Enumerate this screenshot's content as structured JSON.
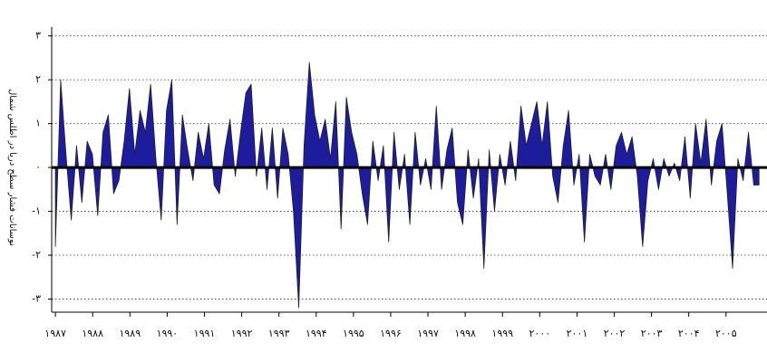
{
  "chart_data": {
    "type": "area",
    "y_label": "نوسانات فشار سطح دریا در اطلس شمال",
    "x": [
      1987,
      1987.142,
      1987.284,
      1987.426,
      1987.568,
      1987.71,
      1987.852,
      1987.994,
      1988.136,
      1988.278,
      1988.42,
      1988.562,
      1988.704,
      1988.846,
      1988.988,
      1989.13,
      1989.272,
      1989.414,
      1989.556,
      1989.698,
      1989.84,
      1989.982,
      1990.124,
      1990.266,
      1990.408,
      1990.55,
      1990.692,
      1990.834,
      1990.976,
      1991.118,
      1991.26,
      1991.402,
      1991.544,
      1991.686,
      1991.828,
      1991.97,
      1992.112,
      1992.254,
      1992.396,
      1992.538,
      1992.68,
      1992.822,
      1992.964,
      1993.106,
      1993.248,
      1993.39,
      1993.532,
      1993.674,
      1993.816,
      1993.958,
      1994.1,
      1994.242,
      1994.384,
      1994.526,
      1994.668,
      1994.81,
      1994.952,
      1995.094,
      1995.236,
      1995.378,
      1995.52,
      1995.662,
      1995.804,
      1995.946,
      1996.088,
      1996.23,
      1996.372,
      1996.514,
      1996.656,
      1996.798,
      1996.94,
      1997.082,
      1997.224,
      1997.366,
      1997.508,
      1997.65,
      1997.792,
      1997.934,
      1998.076,
      1998.218,
      1998.36,
      1998.502,
      1998.644,
      1998.786,
      1998.928,
      1999.07,
      1999.212,
      1999.354,
      1999.496,
      1999.638,
      1999.78,
      1999.922,
      2000.064,
      2000.206,
      2000.348,
      2000.49,
      2000.632,
      2000.774,
      2000.916,
      2001.058,
      2001.2,
      2001.342,
      2001.484,
      2001.626,
      2001.768,
      2001.91,
      2002.052,
      2002.194,
      2002.336,
      2002.478,
      2002.62,
      2002.762,
      2002.904,
      2003.046,
      2003.188,
      2003.33,
      2003.472,
      2003.614,
      2003.756,
      2003.898,
      2004.04,
      2004.182,
      2004.324,
      2004.466,
      2004.608,
      2004.75,
      2004.892,
      2005.034,
      2005.176,
      2005.318,
      2005.46,
      2005.602,
      2005.744,
      2005.886
    ],
    "series": [
      {
        "color": "#1c1c9c",
        "values": [
          -1.8,
          2.0,
          0.3,
          -1.2,
          0.5,
          -0.8,
          0.6,
          0.3,
          -1.1,
          0.8,
          1.2,
          -0.6,
          -0.3,
          0.6,
          1.8,
          0.3,
          1.3,
          0.8,
          1.9,
          0.2,
          -1.2,
          1.3,
          2.0,
          -1.3,
          1.2,
          0.4,
          -0.3,
          0.8,
          0.2,
          1.0,
          -0.4,
          -0.6,
          0.4,
          1.1,
          -0.2,
          0.8,
          1.7,
          1.9,
          -0.2,
          0.9,
          -0.5,
          0.9,
          -0.7,
          0.9,
          0.3,
          -1.0,
          -3.2,
          0.5,
          2.4,
          1.2,
          0.6,
          1.1,
          0.2,
          1.5,
          -1.4,
          1.6,
          0.8,
          0.3,
          -0.6,
          -1.3,
          0.6,
          -0.3,
          0.5,
          -1.7,
          0.8,
          -0.5,
          0.3,
          -1.3,
          0.8,
          -0.4,
          0.2,
          -0.5,
          1.4,
          -0.5,
          0.4,
          0.9,
          -0.8,
          -1.3,
          0.4,
          -0.7,
          0.2,
          -2.3,
          0.4,
          -1.0,
          0.3,
          -0.4,
          0.6,
          -0.3,
          1.4,
          0.5,
          1.0,
          1.5,
          0.5,
          1.5,
          -0.2,
          -0.8,
          0.5,
          1.3,
          -0.4,
          0.3,
          -1.7,
          0.3,
          -0.2,
          -0.4,
          0.3,
          -0.5,
          0.5,
          0.8,
          0.3,
          0.7,
          -0.2,
          -1.8,
          -0.3,
          0.2,
          -0.5,
          0.2,
          -0.2,
          0.1,
          -0.3,
          0.7,
          -0.7,
          1.0,
          0.1,
          1.1,
          -0.4,
          0.6,
          1.0,
          -0.6,
          -2.3,
          0.2,
          -0.3,
          0.8,
          -0.4,
          -0.4
        ]
      }
    ],
    "xlim": [
      1986.9,
      2006.1
    ],
    "ylim": [
      -3.3,
      3.2
    ],
    "xticks": [
      {
        "value": 1987,
        "label": "۱۹۸۷"
      },
      {
        "value": 1988,
        "label": "۱۹۸۸"
      },
      {
        "value": 1989,
        "label": "۱۹۸۹"
      },
      {
        "value": 1990,
        "label": "۱۹۹۰"
      },
      {
        "value": 1991,
        "label": "۱۹۹۱"
      },
      {
        "value": 1992,
        "label": "۱۹۹۲"
      },
      {
        "value": 1993,
        "label": "۱۹۹۳"
      },
      {
        "value": 1994,
        "label": "۱۹۹۴"
      },
      {
        "value": 1995,
        "label": "۱۹۹۵"
      },
      {
        "value": 1996,
        "label": "۱۹۹۶"
      },
      {
        "value": 1997,
        "label": "۱۹۹۷"
      },
      {
        "value": 1998,
        "label": "۱۹۹۸"
      },
      {
        "value": 1999,
        "label": "۱۹۹۹"
      },
      {
        "value": 2000,
        "label": "۲۰۰۰"
      },
      {
        "value": 2001,
        "label": "۲۰۰۱"
      },
      {
        "value": 2002,
        "label": "۲۰۰۲"
      },
      {
        "value": 2003,
        "label": "۲۰۰۳"
      },
      {
        "value": 2004,
        "label": "۲۰۰۴"
      },
      {
        "value": 2005,
        "label": "۲۰۰۵"
      }
    ],
    "yticks": [
      {
        "value": 3,
        "label": "۳"
      },
      {
        "value": 2,
        "label": "۲"
      },
      {
        "value": 1,
        "label": "۱"
      },
      {
        "value": 0,
        "label": "۰"
      },
      {
        "value": -1,
        "label": "-۱"
      },
      {
        "value": -2,
        "label": "-۲"
      },
      {
        "value": -3,
        "label": "-۳"
      }
    ],
    "grid": true
  }
}
